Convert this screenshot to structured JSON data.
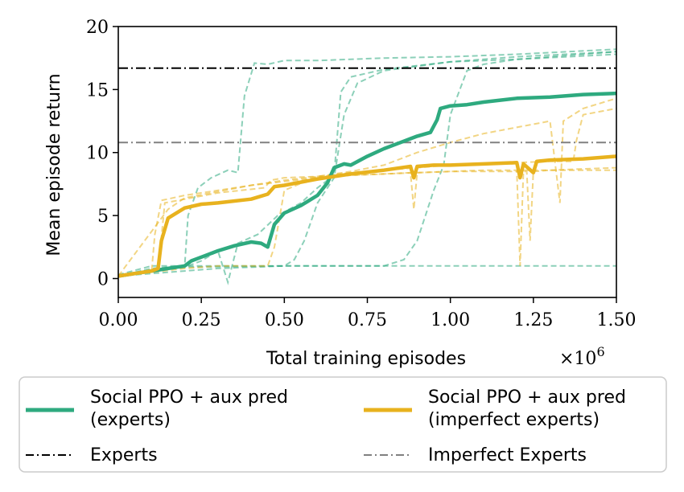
{
  "chart_data": {
    "type": "line",
    "title": "",
    "xlabel": "Total training episodes",
    "x_multiplier_label": "×10",
    "x_multiplier_exp": "6",
    "ylabel": "Mean episode return",
    "xlim": [
      0,
      1.5
    ],
    "ylim": [
      -1.5,
      20
    ],
    "x_ticks": [
      0,
      0.25,
      0.5,
      0.75,
      1.0,
      1.25,
      1.5
    ],
    "x_tick_labels": [
      "0.00",
      "0.25",
      "0.50",
      "0.75",
      "1.00",
      "1.25",
      "1.50"
    ],
    "y_ticks": [
      0,
      5,
      10,
      15,
      20
    ],
    "y_tick_labels": [
      "0",
      "5",
      "10",
      "15",
      "20"
    ],
    "grid": false,
    "legend_position": "below",
    "colors": {
      "experts_green": "#2eaa7f",
      "imperfect_gold": "#e8b21e",
      "experts_line": "#000000",
      "imperfect_line": "#808080"
    },
    "reference_lines": [
      {
        "label": "Experts",
        "y": 16.7,
        "color": "#000000",
        "style": "dashdot"
      },
      {
        "label": "Imperfect Experts",
        "y": 10.8,
        "color": "#808080",
        "style": "dashdot"
      }
    ],
    "series": [
      {
        "name": "Social PPO + aux pred (experts)",
        "legend_line1": "Social PPO + aux pred",
        "legend_line2": "(experts)",
        "color": "#2eaa7f",
        "x": [
          0,
          0.05,
          0.1,
          0.15,
          0.2,
          0.22,
          0.25,
          0.3,
          0.35,
          0.4,
          0.43,
          0.45,
          0.47,
          0.5,
          0.55,
          0.6,
          0.63,
          0.65,
          0.68,
          0.7,
          0.75,
          0.8,
          0.85,
          0.9,
          0.94,
          0.96,
          0.97,
          1.0,
          1.05,
          1.1,
          1.2,
          1.3,
          1.4,
          1.5
        ],
        "y": [
          0.2,
          0.4,
          0.6,
          0.8,
          1.0,
          1.4,
          1.7,
          2.2,
          2.6,
          2.9,
          2.8,
          2.5,
          4.3,
          5.2,
          5.8,
          6.6,
          7.6,
          8.8,
          9.1,
          9.0,
          9.7,
          10.3,
          10.8,
          11.3,
          11.6,
          12.6,
          13.5,
          13.7,
          13.8,
          14.0,
          14.3,
          14.4,
          14.6,
          14.7
        ]
      },
      {
        "name": "Social PPO + aux pred (imperfect experts)",
        "legend_line1": "Social PPO + aux pred",
        "legend_line2": "(imperfect experts)",
        "color": "#e8b21e",
        "x": [
          0,
          0.05,
          0.1,
          0.12,
          0.13,
          0.15,
          0.2,
          0.25,
          0.3,
          0.4,
          0.45,
          0.47,
          0.5,
          0.6,
          0.7,
          0.8,
          0.88,
          0.89,
          0.9,
          0.95,
          1.0,
          1.1,
          1.2,
          1.21,
          1.22,
          1.25,
          1.26,
          1.3,
          1.4,
          1.5
        ],
        "y": [
          0.2,
          0.4,
          0.6,
          0.8,
          3.0,
          4.8,
          5.6,
          5.9,
          6.0,
          6.3,
          6.7,
          7.3,
          7.4,
          7.9,
          8.3,
          8.6,
          8.9,
          8.0,
          8.9,
          9.0,
          9.0,
          9.1,
          9.2,
          8.0,
          9.1,
          8.4,
          9.3,
          9.4,
          9.5,
          9.7
        ]
      }
    ],
    "faint_runs": [
      {
        "color": "#2eaa7f",
        "x": [
          0,
          0.1,
          0.2,
          0.21,
          0.24,
          0.28,
          0.33,
          0.36,
          0.38,
          0.41,
          0.45,
          0.5,
          0.6,
          0.8,
          1.0,
          1.2,
          1.5
        ],
        "y": [
          0.2,
          0.8,
          1.0,
          5.0,
          7.2,
          8.0,
          8.6,
          8.4,
          14.5,
          17.1,
          17.0,
          17.3,
          17.3,
          17.5,
          17.6,
          17.8,
          18.2
        ]
      },
      {
        "color": "#2eaa7f",
        "x": [
          0,
          0.1,
          0.2,
          0.25,
          0.3,
          0.33,
          0.36,
          0.42,
          0.48,
          0.55,
          0.6,
          0.65,
          0.67,
          0.7,
          0.8,
          1.0,
          1.2,
          1.5
        ],
        "y": [
          0.2,
          0.6,
          0.9,
          1.4,
          2.2,
          -0.3,
          2.8,
          3.5,
          5.0,
          6.0,
          7.2,
          8.2,
          14.8,
          16.0,
          16.6,
          17.2,
          17.6,
          18.0
        ]
      },
      {
        "color": "#2eaa7f",
        "x": [
          0,
          0.3,
          0.5,
          0.53,
          0.56,
          0.6,
          0.65,
          0.68,
          0.72,
          0.8,
          1.0,
          1.2,
          1.5
        ],
        "y": [
          0.2,
          0.8,
          1.0,
          1.5,
          3.0,
          6.0,
          8.0,
          13.0,
          15.5,
          16.5,
          17.2,
          17.4,
          18.0
        ]
      },
      {
        "color": "#2eaa7f",
        "x": [
          0,
          0.2,
          0.5,
          0.8,
          0.86,
          0.9,
          0.95,
          0.98,
          1.0,
          1.05,
          1.1,
          1.2,
          1.5
        ],
        "y": [
          0.2,
          0.9,
          1.0,
          1.0,
          1.5,
          3.0,
          7.0,
          9.0,
          13.0,
          16.5,
          17.0,
          17.4,
          17.8
        ]
      },
      {
        "color": "#2eaa7f",
        "x": [
          0,
          0.1,
          0.3,
          0.6,
          0.9,
          1.2,
          1.5
        ],
        "y": [
          0.3,
          1.0,
          1.0,
          1.0,
          1.0,
          1.0,
          1.0
        ]
      },
      {
        "color": "#e8b21e",
        "x": [
          0,
          0.1,
          0.11,
          0.13,
          0.2,
          0.3,
          0.4,
          0.5,
          0.6,
          0.7,
          0.8,
          0.9,
          1.0,
          1.1,
          1.2,
          1.21,
          1.22,
          1.3,
          1.4,
          1.5
        ],
        "y": [
          0.2,
          0.5,
          3.5,
          6.2,
          6.6,
          7.0,
          7.4,
          7.7,
          8.0,
          8.2,
          8.3,
          8.4,
          8.5,
          8.6,
          8.6,
          1.0,
          8.6,
          8.6,
          8.7,
          8.8
        ]
      },
      {
        "color": "#e8b21e",
        "x": [
          0,
          0.12,
          0.14,
          0.2,
          0.3,
          0.44,
          0.46,
          0.5,
          0.6,
          0.7,
          0.8,
          0.88,
          0.89,
          0.9,
          1.0,
          1.1,
          1.23,
          1.24,
          1.25,
          1.3,
          1.5
        ],
        "y": [
          0.2,
          0.6,
          6.0,
          6.3,
          6.8,
          7.2,
          7.8,
          8.0,
          8.1,
          8.2,
          8.3,
          8.4,
          5.5,
          8.4,
          8.5,
          8.5,
          8.5,
          3.0,
          8.5,
          8.6,
          8.6
        ]
      },
      {
        "color": "#e8b21e",
        "x": [
          0,
          0.2,
          0.3,
          0.45,
          0.47,
          0.5,
          0.6,
          0.7,
          0.8,
          0.9,
          1.0,
          1.1,
          1.2,
          1.3,
          1.33,
          1.34,
          1.4,
          1.5
        ],
        "y": [
          0.2,
          0.8,
          1.0,
          1.0,
          2.5,
          7.0,
          8.1,
          8.5,
          9.0,
          10.0,
          10.8,
          11.5,
          12.0,
          12.5,
          6.0,
          12.5,
          13.5,
          14.3
        ]
      },
      {
        "color": "#e8b21e",
        "x": [
          0,
          0.15,
          0.2,
          0.3,
          0.4,
          0.5,
          0.6,
          0.7,
          0.8,
          0.9,
          1.0,
          1.1,
          1.2,
          1.3,
          1.37,
          1.38,
          1.4,
          1.5
        ],
        "y": [
          0.2,
          5.5,
          6.4,
          6.9,
          7.4,
          7.8,
          8.1,
          8.4,
          8.6,
          8.8,
          9.0,
          9.1,
          9.2,
          9.3,
          9.3,
          11.0,
          13.0,
          13.5
        ]
      }
    ]
  }
}
